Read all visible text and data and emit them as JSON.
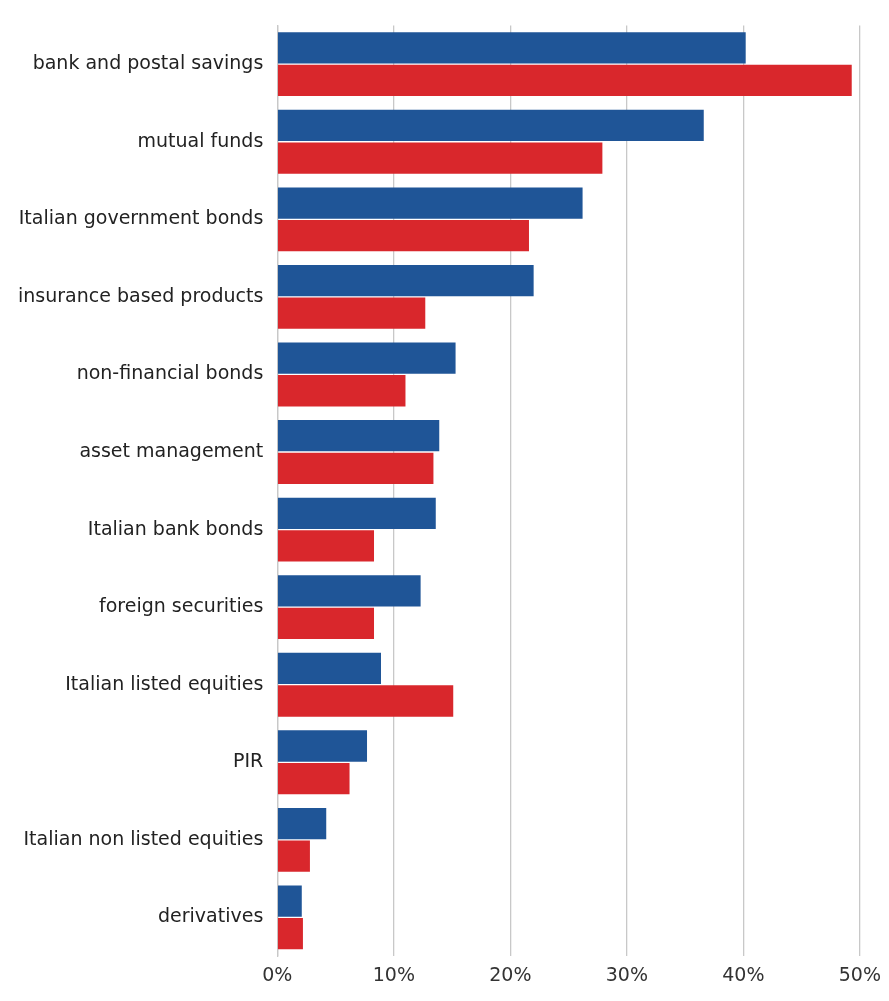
{
  "chart_data": {
    "type": "bar",
    "orientation": "horizontal",
    "categories": [
      "bank and postal savings",
      "mutual funds",
      "Italian government bonds",
      "insurance based products",
      "non-financial bonds",
      "asset management",
      "Italian bank bonds",
      "foreign securities",
      "Italian listed equities",
      "PIR",
      "Italian non listed equities",
      "derivatives"
    ],
    "series": [
      {
        "color": "#1f5597",
        "values": [
          40.2,
          36.6,
          26.2,
          22.0,
          15.3,
          13.9,
          13.6,
          12.3,
          8.9,
          7.7,
          4.2,
          2.1
        ]
      },
      {
        "color": "#d9272c",
        "values": [
          49.3,
          27.9,
          21.6,
          12.7,
          11.0,
          13.4,
          8.3,
          8.3,
          15.1,
          6.2,
          2.8,
          2.2
        ]
      }
    ],
    "xlim": [
      0,
      50
    ],
    "xticks": [
      {
        "value": 0,
        "label": "0%"
      },
      {
        "value": 10,
        "label": "10%"
      },
      {
        "value": 20,
        "label": "20%"
      },
      {
        "value": 30,
        "label": "30%"
      },
      {
        "value": 40,
        "label": "40%"
      },
      {
        "value": 50,
        "label": "50%"
      }
    ],
    "grid": "x",
    "legend": false
  }
}
